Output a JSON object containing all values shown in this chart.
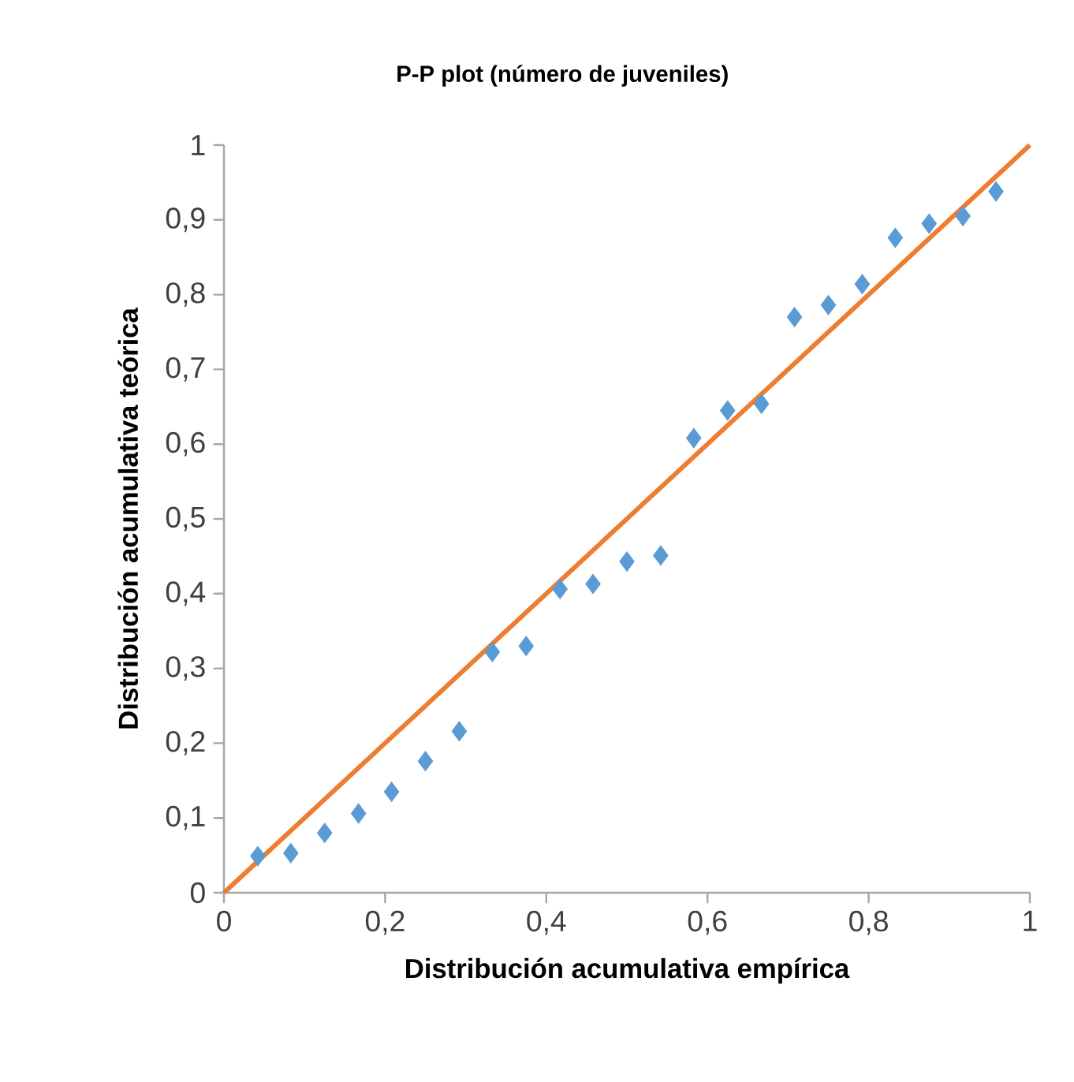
{
  "chart_data": {
    "type": "scatter",
    "title": "P-P plot (número de juveniles)",
    "xlabel": "Distribución  acumulativa empírica",
    "ylabel": "Distribución  acumulativa teórica",
    "xlim": [
      0,
      1
    ],
    "ylim": [
      0,
      1
    ],
    "xticks": [
      0,
      {
        "value": 0.2,
        "label": "0,2"
      },
      {
        "value": 0.4,
        "label": "0,4"
      },
      {
        "value": 0.6,
        "label": "0,6"
      },
      {
        "value": 0.8,
        "label": "0,8"
      },
      1
    ],
    "yticks": [
      0,
      {
        "value": 0.1,
        "label": "0,1"
      },
      {
        "value": 0.2,
        "label": "0,2"
      },
      {
        "value": 0.3,
        "label": "0,3"
      },
      {
        "value": 0.4,
        "label": "0,4"
      },
      {
        "value": 0.5,
        "label": "0,5"
      },
      {
        "value": 0.6,
        "label": "0,6"
      },
      {
        "value": 0.7,
        "label": "0,7"
      },
      {
        "value": 0.8,
        "label": "0,8"
      },
      {
        "value": 0.9,
        "label": "0,9"
      },
      1
    ],
    "series": [
      {
        "color": "#5b9bd5",
        "marker": "diamond",
        "x": [
          0.042,
          0.083,
          0.125,
          0.167,
          0.208,
          0.25,
          0.292,
          0.333,
          0.375,
          0.417,
          0.458,
          0.5,
          0.542,
          0.583,
          0.625,
          0.667,
          0.708,
          0.75,
          0.792,
          0.833,
          0.875,
          0.917,
          0.958
        ],
        "values": [
          0.049,
          0.053,
          0.08,
          0.106,
          0.135,
          0.176,
          0.216,
          0.322,
          0.33,
          0.406,
          0.413,
          0.443,
          0.451,
          0.608,
          0.645,
          0.654,
          0.77,
          0.786,
          0.814,
          0.876,
          0.895,
          0.905,
          0.938
        ]
      },
      {
        "type": "line",
        "color": "#ed7d31",
        "marker": "none",
        "line_style": "solid",
        "x": [
          0,
          1
        ],
        "values": [
          0,
          1
        ]
      }
    ]
  }
}
